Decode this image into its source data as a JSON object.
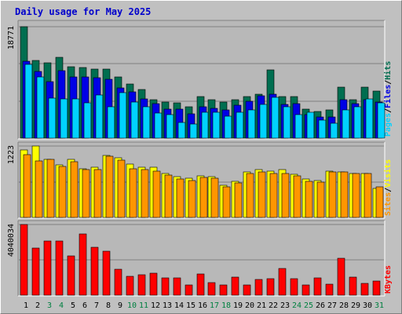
{
  "title": "Daily usage for May 2025",
  "colors": {
    "frame_bg": "#c0c0c0",
    "plot_bg": "#b8b8b8",
    "gridline": "#808080",
    "title_color": "#0000cc",
    "day_weekday": "#000000",
    "day_weekend": "#008040",
    "hits_color": "#006e50",
    "files_color": "#0000e6",
    "pages_color": "#00d2ff",
    "visits_color": "#ffff00",
    "sites_color": "#ff9600",
    "kbytes_color": "#ff0000"
  },
  "chart_data": [
    {
      "type": "bar",
      "panel": "top",
      "categories": [
        "1",
        "2",
        "3",
        "4",
        "5",
        "6",
        "7",
        "8",
        "9",
        "10",
        "11",
        "12",
        "13",
        "14",
        "15",
        "16",
        "17",
        "18",
        "19",
        "20",
        "21",
        "22",
        "23",
        "24",
        "25",
        "26",
        "27",
        "28",
        "29",
        "30",
        "31"
      ],
      "weekend_days": [
        "3",
        "4",
        "10",
        "11",
        "17",
        "18",
        "24",
        "25",
        "31"
      ],
      "max_label": "18771",
      "ylim": [
        0,
        18771
      ],
      "right_labels": [
        {
          "text": "Pages",
          "color": "#00d2ff"
        },
        {
          "text": "/",
          "color": "#000000"
        },
        {
          "text": "Files",
          "color": "#0000e6"
        },
        {
          "text": "/",
          "color": "#000000"
        },
        {
          "text": "Hits",
          "color": "#006e50"
        }
      ],
      "series": [
        {
          "name": "Hits",
          "color": "#006e50",
          "values": [
            18771,
            13100,
            12700,
            13600,
            12000,
            11900,
            11600,
            11700,
            10300,
            9200,
            8200,
            6600,
            6200,
            6000,
            5300,
            7100,
            6600,
            6200,
            6600,
            7100,
            7500,
            11500,
            7100,
            7100,
            5000,
            4600,
            4800,
            8600,
            6600,
            8600,
            8000
          ]
        },
        {
          "name": "Files",
          "color": "#0000e6",
          "values": [
            13000,
            11200,
            9600,
            11400,
            10400,
            10400,
            10200,
            9900,
            8500,
            7900,
            6700,
            5900,
            5000,
            5000,
            4200,
            5300,
            5100,
            4900,
            5600,
            6300,
            7200,
            7500,
            5700,
            5900,
            4000,
            3700,
            3700,
            6600,
            5900,
            6600,
            6200
          ]
        },
        {
          "name": "Pages",
          "color": "#00d2ff",
          "values": [
            12400,
            10300,
            6800,
            6700,
            6700,
            6000,
            7300,
            5400,
            7700,
            6200,
            5300,
            4300,
            4000,
            2800,
            2500,
            4400,
            4500,
            3800,
            4500,
            4800,
            5700,
            7000,
            5300,
            4000,
            4500,
            3100,
            2600,
            4900,
            5300,
            6700,
            6000
          ]
        }
      ]
    },
    {
      "type": "bar",
      "panel": "middle",
      "categories": [
        "1",
        "2",
        "3",
        "4",
        "5",
        "6",
        "7",
        "8",
        "9",
        "10",
        "11",
        "12",
        "13",
        "14",
        "15",
        "16",
        "17",
        "18",
        "19",
        "20",
        "21",
        "22",
        "23",
        "24",
        "25",
        "26",
        "27",
        "28",
        "29",
        "30",
        "31"
      ],
      "max_label": "1223",
      "ylim": [
        0,
        1223
      ],
      "right_labels": [
        {
          "text": "Sites",
          "color": "#ff9600"
        },
        {
          "text": "/",
          "color": "#000000"
        },
        {
          "text": "Visits",
          "color": "#ffff00"
        }
      ],
      "series": [
        {
          "name": "Visits",
          "color": "#ffff00",
          "values": [
            1160,
            1223,
            1000,
            900,
            1000,
            840,
            860,
            1060,
            1020,
            920,
            860,
            860,
            760,
            700,
            680,
            720,
            700,
            560,
            620,
            780,
            820,
            800,
            820,
            740,
            670,
            640,
            800,
            780,
            760,
            760,
            500
          ]
        },
        {
          "name": "Sites",
          "color": "#ff9600",
          "values": [
            1070,
            970,
            1000,
            880,
            960,
            820,
            820,
            1050,
            980,
            840,
            820,
            800,
            730,
            660,
            640,
            690,
            680,
            530,
            600,
            760,
            780,
            760,
            760,
            720,
            620,
            610,
            780,
            780,
            760,
            760,
            530
          ]
        }
      ]
    },
    {
      "type": "bar",
      "panel": "bottom",
      "categories": [
        "1",
        "2",
        "3",
        "4",
        "5",
        "6",
        "7",
        "8",
        "9",
        "10",
        "11",
        "12",
        "13",
        "14",
        "15",
        "16",
        "17",
        "18",
        "19",
        "20",
        "21",
        "22",
        "23",
        "24",
        "25",
        "26",
        "27",
        "28",
        "29",
        "30",
        "31"
      ],
      "max_label": "4040034",
      "ylim": [
        0,
        4040034
      ],
      "right_labels": [
        {
          "text": "KBytes",
          "color": "#ff0000"
        }
      ],
      "series": [
        {
          "name": "KBytes",
          "color": "#ff0000",
          "values": [
            4040034,
            2700000,
            3080000,
            3080000,
            2280000,
            3500000,
            2740000,
            2540000,
            1500000,
            1120000,
            1200000,
            1280000,
            1000000,
            1040000,
            640000,
            1220000,
            760000,
            600000,
            1060000,
            640000,
            940000,
            980000,
            1550000,
            960000,
            640000,
            1000000,
            680000,
            2140000,
            1050000,
            730000,
            820000
          ]
        }
      ]
    }
  ]
}
